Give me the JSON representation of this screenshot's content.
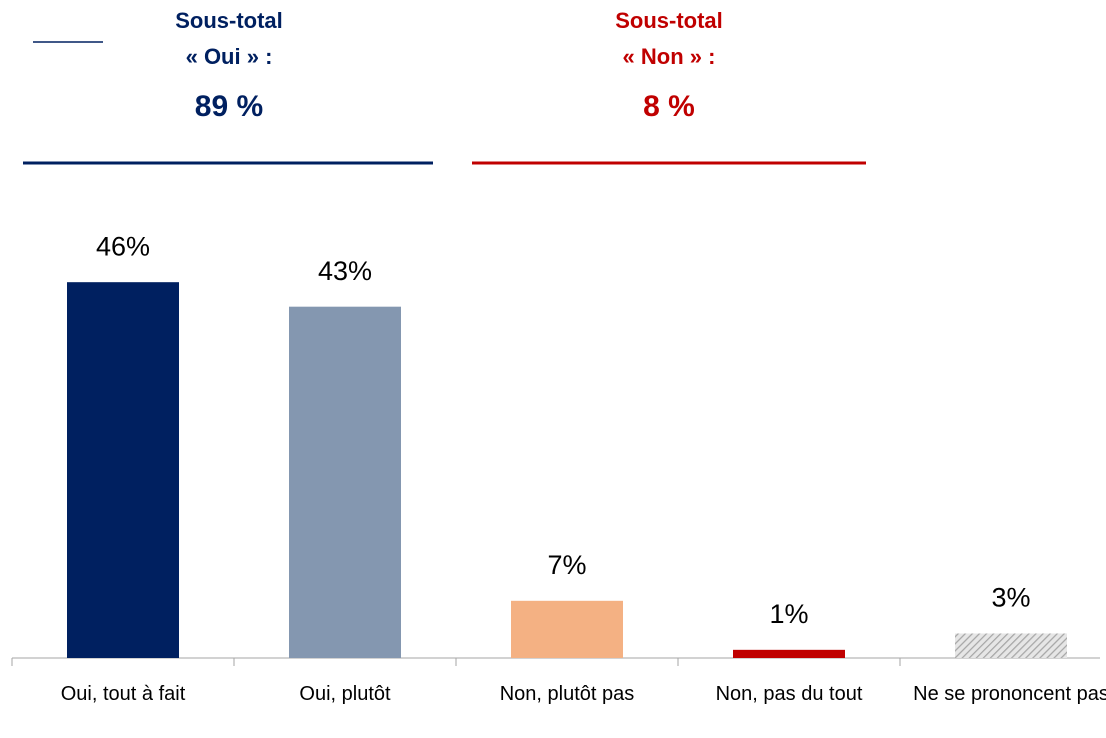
{
  "chart_data": {
    "type": "bar",
    "categories": [
      "Oui, tout à fait",
      "Oui, plutôt",
      "Non, plutôt pas",
      "Non, pas du tout",
      "Ne se prononcent pas"
    ],
    "values": [
      46,
      43,
      7,
      1,
      3
    ],
    "value_labels": [
      "46%",
      "43%",
      "7%",
      "1%",
      "3%"
    ],
    "colors": [
      "#002060",
      "#8497b0",
      "#f4b183",
      "#c00000",
      "#bfbfbf"
    ],
    "hatched": [
      false,
      false,
      false,
      false,
      true
    ],
    "annotations": [
      {
        "lines": [
          "Sous-total",
          "« Oui » :",
          "89 %"
        ],
        "color": "#002060"
      },
      {
        "lines": [
          "Sous-total",
          "« Non » :",
          "8 %"
        ],
        "color": "#c00000"
      }
    ]
  }
}
